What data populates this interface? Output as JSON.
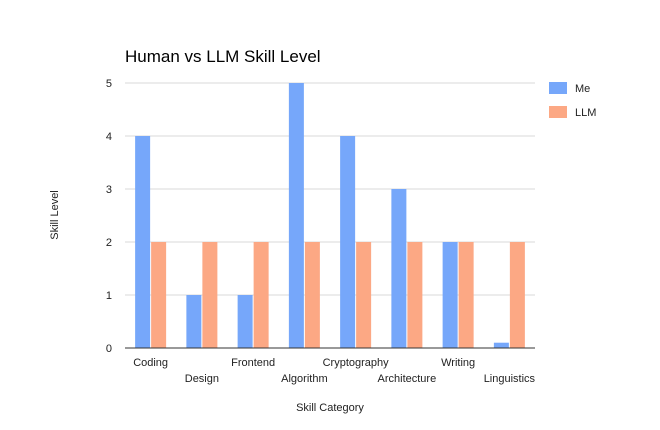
{
  "chart_data": {
    "type": "bar",
    "title": "Human vs LLM Skill Level",
    "xlabel": "Skill Category",
    "ylabel": "Skill Level",
    "ylim": [
      0,
      5
    ],
    "yticks": [
      0,
      1,
      2,
      3,
      4,
      5
    ],
    "grid": true,
    "legend_position": "right",
    "categories": [
      "Coding",
      "Design",
      "Frontend",
      "Algorithm",
      "Cryptography",
      "Architecture",
      "Writing",
      "Linguistics"
    ],
    "series": [
      {
        "name": "Me",
        "color": "#76A7FA",
        "values": [
          4,
          1,
          1,
          5,
          4,
          3,
          2,
          0.1
        ]
      },
      {
        "name": "LLM",
        "color": "#FCA884",
        "values": [
          2,
          2,
          2,
          2,
          2,
          2,
          2,
          2
        ]
      }
    ]
  }
}
